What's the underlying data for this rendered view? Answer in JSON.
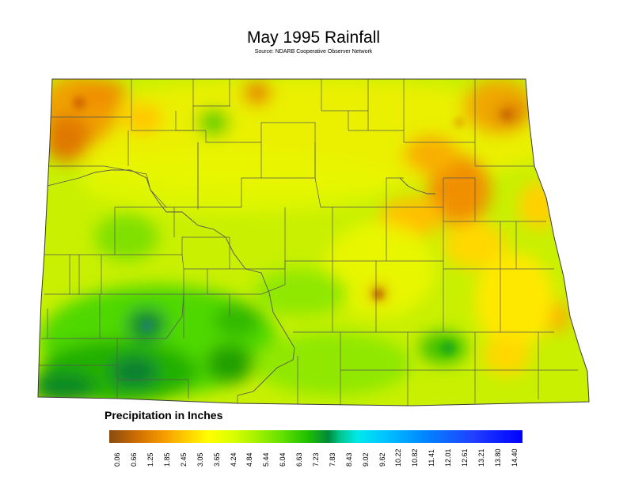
{
  "title": "May 1995 Rainfall",
  "subtitle": "Source: NDARB Cooperative Observer Network",
  "legend": {
    "title": "Precipitation in Inches",
    "ticks": [
      "0.06",
      "0.66",
      "1.25",
      "1.85",
      "2.45",
      "3.05",
      "3.65",
      "4.24",
      "4.84",
      "5.44",
      "6.04",
      "6.63",
      "7.23",
      "7.83",
      "8.43",
      "9.02",
      "9.62",
      "10.22",
      "10.82",
      "11.41",
      "12.01",
      "12.61",
      "13.21",
      "13.80",
      "14.40"
    ],
    "colors": [
      "#8a4a10",
      "#d07000",
      "#f59a00",
      "#ffd000",
      "#ffff00",
      "#d8ff00",
      "#a0f000",
      "#60e000",
      "#20c000",
      "#008a3a",
      "#00e8d0",
      "#00d8ff",
      "#00a8ff",
      "#0070ff",
      "#2030ff",
      "#0000ff"
    ]
  },
  "map": {
    "region": "North Dakota",
    "colors": {
      "base": "#c8f000",
      "outline": "#3a3a3a",
      "county_line": "#555555"
    }
  }
}
